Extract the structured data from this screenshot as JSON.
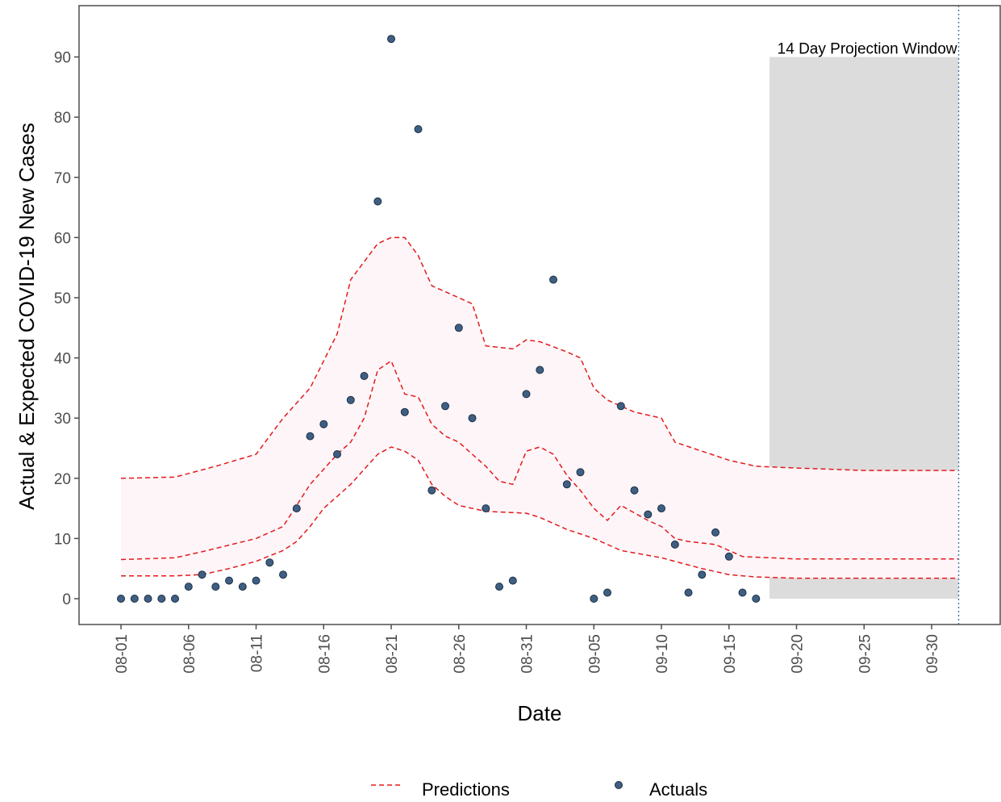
{
  "chart_data": {
    "type": "scatter",
    "title": "",
    "xlabel": "Date",
    "ylabel": "Actual & Expected COVID-19 New Cases",
    "x_ticks": [
      "08-01",
      "08-06",
      "08-11",
      "08-16",
      "08-21",
      "08-26",
      "08-31",
      "09-05",
      "09-10",
      "09-15",
      "09-20",
      "09-25",
      "09-30"
    ],
    "y_ticks": [
      0,
      10,
      20,
      30,
      40,
      50,
      60,
      70,
      80,
      90
    ],
    "ylim": [
      -4,
      98
    ],
    "xlim": [
      "07-31",
      "10-03"
    ],
    "grid": false,
    "legend_position": "bottom",
    "projection_window": {
      "label": "14 Day Projection Window",
      "start": "09-18",
      "end": "10-02",
      "ymax": 90
    },
    "cutoff_line": "10-02",
    "series": [
      {
        "name": "Actuals",
        "kind": "points",
        "color": "#3f5f82",
        "points": [
          [
            "08-01",
            0
          ],
          [
            "08-02",
            0
          ],
          [
            "08-03",
            0
          ],
          [
            "08-04",
            0
          ],
          [
            "08-05",
            0
          ],
          [
            "08-06",
            2
          ],
          [
            "08-07",
            4
          ],
          [
            "08-08",
            2
          ],
          [
            "08-09",
            3
          ],
          [
            "08-10",
            2
          ],
          [
            "08-11",
            3
          ],
          [
            "08-12",
            6
          ],
          [
            "08-13",
            4
          ],
          [
            "08-14",
            15
          ],
          [
            "08-15",
            27
          ],
          [
            "08-16",
            29
          ],
          [
            "08-17",
            24
          ],
          [
            "08-18",
            33
          ],
          [
            "08-19",
            37
          ],
          [
            "08-20",
            66
          ],
          [
            "08-21",
            93
          ],
          [
            "08-22",
            31
          ],
          [
            "08-23",
            78
          ],
          [
            "08-24",
            18
          ],
          [
            "08-25",
            32
          ],
          [
            "08-26",
            45
          ],
          [
            "08-27",
            30
          ],
          [
            "08-28",
            15
          ],
          [
            "08-29",
            2
          ],
          [
            "08-30",
            3
          ],
          [
            "08-31",
            34
          ],
          [
            "09-01",
            38
          ],
          [
            "09-02",
            53
          ],
          [
            "09-03",
            19
          ],
          [
            "09-04",
            21
          ],
          [
            "09-05",
            0
          ],
          [
            "09-06",
            1
          ],
          [
            "09-07",
            32
          ],
          [
            "09-08",
            18
          ],
          [
            "09-09",
            14
          ],
          [
            "09-10",
            15
          ],
          [
            "09-11",
            9
          ],
          [
            "09-12",
            1
          ],
          [
            "09-13",
            4
          ],
          [
            "09-14",
            11
          ],
          [
            "09-15",
            7
          ],
          [
            "09-16",
            1
          ],
          [
            "09-17",
            0
          ]
        ]
      },
      {
        "name": "Predictions",
        "kind": "dashed-lines",
        "color": "#e31a1c",
        "upper": [
          [
            "08-01",
            20
          ],
          [
            "08-05",
            20.2
          ],
          [
            "08-08",
            22
          ],
          [
            "08-11",
            24
          ],
          [
            "08-13",
            30
          ],
          [
            "08-15",
            35
          ],
          [
            "08-17",
            44
          ],
          [
            "08-18",
            53
          ],
          [
            "08-20",
            59
          ],
          [
            "08-21",
            60
          ],
          [
            "08-22",
            60
          ],
          [
            "08-23",
            57
          ],
          [
            "08-24",
            52
          ],
          [
            "08-25",
            51
          ],
          [
            "08-26",
            50
          ],
          [
            "08-27",
            49
          ],
          [
            "08-28",
            42
          ],
          [
            "08-30",
            41.5
          ],
          [
            "08-31",
            43
          ],
          [
            "09-01",
            42.7
          ],
          [
            "09-03",
            41
          ],
          [
            "09-04",
            40
          ],
          [
            "09-05",
            35
          ],
          [
            "09-06",
            33
          ],
          [
            "09-07",
            32
          ],
          [
            "09-08",
            31
          ],
          [
            "09-10",
            30
          ],
          [
            "09-11",
            26
          ],
          [
            "09-13",
            24.5
          ],
          [
            "09-15",
            23
          ],
          [
            "09-17",
            22
          ],
          [
            "09-20",
            21.7
          ],
          [
            "09-25",
            21.3
          ],
          [
            "10-02",
            21.3
          ]
        ],
        "middle": [
          [
            "08-01",
            6.5
          ],
          [
            "08-05",
            6.8
          ],
          [
            "08-07",
            7.8
          ],
          [
            "08-11",
            10
          ],
          [
            "08-13",
            12
          ],
          [
            "08-15",
            19
          ],
          [
            "08-17",
            24
          ],
          [
            "08-18",
            26
          ],
          [
            "08-19",
            30
          ],
          [
            "08-20",
            38
          ],
          [
            "08-21",
            39.5
          ],
          [
            "08-22",
            34
          ],
          [
            "08-23",
            33.5
          ],
          [
            "08-24",
            29
          ],
          [
            "08-25",
            27
          ],
          [
            "08-26",
            26
          ],
          [
            "08-27",
            24
          ],
          [
            "08-28",
            22
          ],
          [
            "08-29",
            19.5
          ],
          [
            "08-30",
            19
          ],
          [
            "08-31",
            24.5
          ],
          [
            "09-01",
            25.2
          ],
          [
            "09-02",
            24
          ],
          [
            "09-03",
            20.5
          ],
          [
            "09-04",
            18
          ],
          [
            "09-05",
            15
          ],
          [
            "09-06",
            13
          ],
          [
            "09-07",
            15.5
          ],
          [
            "09-09",
            13
          ],
          [
            "09-10",
            12
          ],
          [
            "09-11",
            10
          ],
          [
            "09-12",
            9.5
          ],
          [
            "09-14",
            9
          ],
          [
            "09-15",
            8
          ],
          [
            "09-16",
            7
          ],
          [
            "09-18",
            6.8
          ],
          [
            "09-20",
            6.6
          ],
          [
            "10-02",
            6.6
          ]
        ],
        "lower": [
          [
            "08-01",
            3.8
          ],
          [
            "08-05",
            3.8
          ],
          [
            "08-07",
            4
          ],
          [
            "08-09",
            5
          ],
          [
            "08-11",
            6.2
          ],
          [
            "08-13",
            8
          ],
          [
            "08-14",
            9.5
          ],
          [
            "08-15",
            12
          ],
          [
            "08-16",
            15
          ],
          [
            "08-18",
            19
          ],
          [
            "08-20",
            24
          ],
          [
            "08-21",
            25.2
          ],
          [
            "08-22",
            24.5
          ],
          [
            "08-23",
            23
          ],
          [
            "08-24",
            19
          ],
          [
            "08-25",
            17
          ],
          [
            "08-26",
            15.5
          ],
          [
            "08-28",
            14.5
          ],
          [
            "08-31",
            14.2
          ],
          [
            "09-01",
            13.5
          ],
          [
            "09-03",
            11.5
          ],
          [
            "09-05",
            10
          ],
          [
            "09-07",
            8
          ],
          [
            "09-10",
            6.8
          ],
          [
            "09-13",
            5
          ],
          [
            "09-15",
            4
          ],
          [
            "09-17",
            3.6
          ],
          [
            "09-20",
            3.4
          ],
          [
            "10-02",
            3.4
          ]
        ]
      }
    ],
    "legend": [
      {
        "label": "Predictions",
        "symbol": "dashed-line"
      },
      {
        "label": "Actuals",
        "symbol": "point"
      }
    ]
  }
}
